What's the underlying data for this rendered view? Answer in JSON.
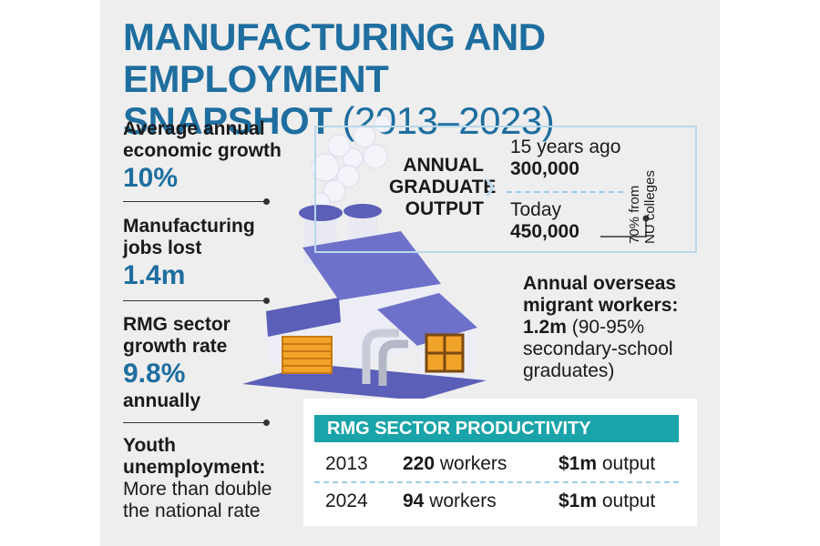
{
  "title": {
    "line1": "MANUFACTURING AND EMPLOYMENT",
    "line2_bold": "SNAPSHOT",
    "line2_light": "(2013–2023)"
  },
  "stats": [
    {
      "label_line1": "Average annual",
      "label_line2": "economic growth",
      "value": "10%"
    },
    {
      "label_line1": "Manufacturing",
      "label_line2": "jobs lost",
      "value": "1.4m"
    },
    {
      "label_line1": "RMG sector",
      "label_line2": "growth rate",
      "value": "9.8%",
      "suffix": "annually"
    },
    {
      "label_line1": "Youth",
      "label_line2": "unemployment:",
      "desc_line1": "More than double",
      "desc_line2": "the national rate"
    }
  ],
  "graduates": {
    "label_line1": "ANNUAL",
    "label_line2": "GRADUATE",
    "label_line3": "OUTPUT",
    "past_label": "15 years ago",
    "past_value": "300,000",
    "now_label": "Today",
    "now_value": "450,000",
    "note_line1": "70% from",
    "note_line2": "NU colleges"
  },
  "migrants": {
    "line1": "Annual overseas",
    "line2": "migrant workers:",
    "value": "1.2m",
    "detail_line1": "(90-95%",
    "detail_line2": "secondary-school",
    "detail_line3": "graduates)"
  },
  "productivity": {
    "title": "RMG SECTOR PRODUCTIVITY",
    "rows": [
      {
        "year": "2013",
        "workers": "220",
        "workers_unit": "workers",
        "output": "$1m",
        "output_unit": "output"
      },
      {
        "year": "2024",
        "workers": "94",
        "workers_unit": "workers",
        "output": "$1m",
        "output_unit": "output"
      }
    ]
  },
  "illustration": {
    "icon": "factory-icon"
  },
  "colors": {
    "accent_blue": "#1e6e9f",
    "table_header": "#1aa3a8",
    "panel_bg": "#eeeeee",
    "factory_purple": "#5b5fb8",
    "door_orange": "#f2a32a"
  }
}
